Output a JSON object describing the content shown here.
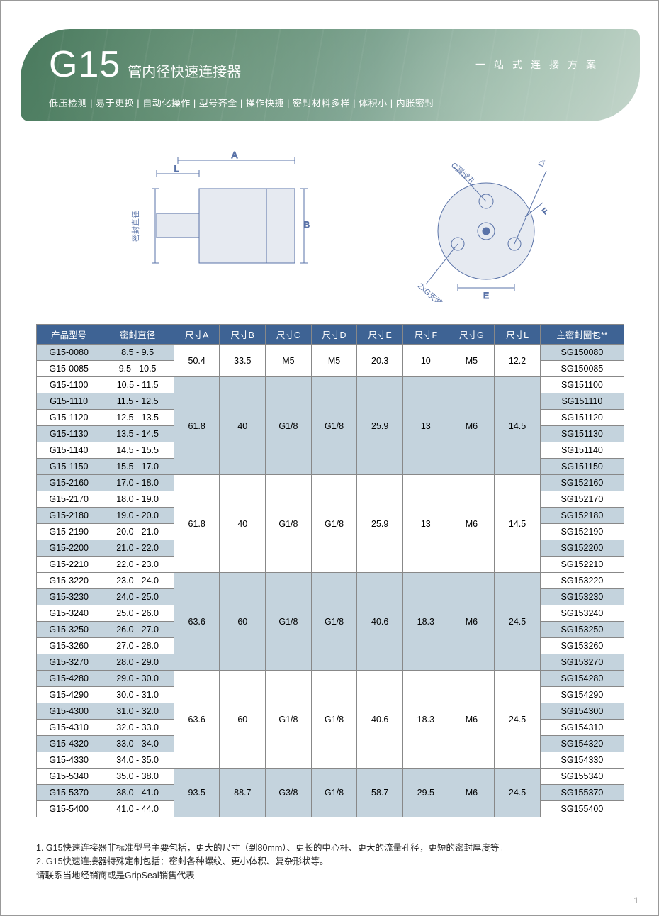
{
  "page_number": "1",
  "colors": {
    "header_gradient_from": "#4a7a5e",
    "header_gradient_to": "#c5d6cc",
    "table_header_bg": "#3e6394",
    "table_header_fg": "#ffffff",
    "shade_bg": "#c4d3dd",
    "border": "#888888",
    "text": "#222222"
  },
  "header": {
    "code": "G15",
    "subtitle": "管内径快速连接器",
    "slogan": "一站式连接方案",
    "features": "低压检测 | 易于更换 | 自动化操作 | 型号齐全 | 操作快捷 | 密封材料多样 | 体积小 | 内胀密封"
  },
  "diagram": {
    "left_labels": {
      "A": "A",
      "L": "L",
      "B": "B",
      "seal_dia": "密封直径"
    },
    "right_labels": {
      "C": "C测试孔",
      "D": "D驱动孔",
      "G": "2xG安装孔",
      "E": "E",
      "F": "F"
    }
  },
  "table": {
    "headers": [
      "产品型号",
      "密封直径",
      "尺寸A",
      "尺寸B",
      "尺寸C",
      "尺寸D",
      "尺寸E",
      "尺寸F",
      "尺寸G",
      "尺寸L",
      "主密封圈包**"
    ],
    "groups": [
      {
        "shade": false,
        "dims": [
          "50.4",
          "33.5",
          "M5",
          "M5",
          "20.3",
          "10",
          "M5",
          "12.2"
        ],
        "rows": [
          {
            "model": "G15-0080",
            "dia": "8.5 - 9.5",
            "seal": "SG150080"
          },
          {
            "model": "G15-0085",
            "dia": "9.5 - 10.5",
            "seal": "SG150085"
          }
        ]
      },
      {
        "shade": true,
        "dims": [
          "61.8",
          "40",
          "G1/8",
          "G1/8",
          "25.9",
          "13",
          "M6",
          "14.5"
        ],
        "rows": [
          {
            "model": "G15-1100",
            "dia": "10.5 - 11.5",
            "seal": "SG151100"
          },
          {
            "model": "G15-1110",
            "dia": "11.5 - 12.5",
            "seal": "SG151110"
          },
          {
            "model": "G15-1120",
            "dia": "12.5 - 13.5",
            "seal": "SG151120"
          },
          {
            "model": "G15-1130",
            "dia": "13.5 - 14.5",
            "seal": "SG151130"
          },
          {
            "model": "G15-1140",
            "dia": "14.5 - 15.5",
            "seal": "SG151140"
          },
          {
            "model": "G15-1150",
            "dia": "15.5 - 17.0",
            "seal": "SG151150"
          }
        ]
      },
      {
        "shade": false,
        "dims": [
          "61.8",
          "40",
          "G1/8",
          "G1/8",
          "25.9",
          "13",
          "M6",
          "14.5"
        ],
        "rows": [
          {
            "model": "G15-2160",
            "dia": "17.0 - 18.0",
            "seal": "SG152160"
          },
          {
            "model": "G15-2170",
            "dia": "18.0 - 19.0",
            "seal": "SG152170"
          },
          {
            "model": "G15-2180",
            "dia": "19.0 - 20.0",
            "seal": "SG152180"
          },
          {
            "model": "G15-2190",
            "dia": "20.0 - 21.0",
            "seal": "SG152190"
          },
          {
            "model": "G15-2200",
            "dia": "21.0 - 22.0",
            "seal": "SG152200"
          },
          {
            "model": "G15-2210",
            "dia": "22.0 - 23.0",
            "seal": "SG152210"
          }
        ]
      },
      {
        "shade": true,
        "dims": [
          "63.6",
          "60",
          "G1/8",
          "G1/8",
          "40.6",
          "18.3",
          "M6",
          "24.5"
        ],
        "rows": [
          {
            "model": "G15-3220",
            "dia": "23.0 - 24.0",
            "seal": "SG153220"
          },
          {
            "model": "G15-3230",
            "dia": "24.0 - 25.0",
            "seal": "SG153230"
          },
          {
            "model": "G15-3240",
            "dia": "25.0 - 26.0",
            "seal": "SG153240"
          },
          {
            "model": "G15-3250",
            "dia": "26.0 - 27.0",
            "seal": "SG153250"
          },
          {
            "model": "G15-3260",
            "dia": "27.0 - 28.0",
            "seal": "SG153260"
          },
          {
            "model": "G15-3270",
            "dia": "28.0 - 29.0",
            "seal": "SG153270"
          }
        ]
      },
      {
        "shade": false,
        "dims": [
          "63.6",
          "60",
          "G1/8",
          "G1/8",
          "40.6",
          "18.3",
          "M6",
          "24.5"
        ],
        "rows": [
          {
            "model": "G15-4280",
            "dia": "29.0 - 30.0",
            "seal": "SG154280"
          },
          {
            "model": "G15-4290",
            "dia": "30.0 - 31.0",
            "seal": "SG154290"
          },
          {
            "model": "G15-4300",
            "dia": "31.0 - 32.0",
            "seal": "SG154300"
          },
          {
            "model": "G15-4310",
            "dia": "32.0 - 33.0",
            "seal": "SG154310"
          },
          {
            "model": "G15-4320",
            "dia": "33.0 - 34.0",
            "seal": "SG154320"
          },
          {
            "model": "G15-4330",
            "dia": "34.0 - 35.0",
            "seal": "SG154330"
          }
        ]
      },
      {
        "shade": true,
        "dims": [
          "93.5",
          "88.7",
          "G3/8",
          "G1/8",
          "58.7",
          "29.5",
          "M6",
          "24.5"
        ],
        "rows": [
          {
            "model": "G15-5340",
            "dia": "35.0 - 38.0",
            "seal": "SG155340"
          },
          {
            "model": "G15-5370",
            "dia": "38.0 - 41.0",
            "seal": "SG155370"
          },
          {
            "model": "G15-5400",
            "dia": "41.0 - 44.0",
            "seal": "SG155400"
          }
        ]
      }
    ]
  },
  "notes": {
    "line1": "1. G15快速连接器非标准型号主要包括，更大的尺寸（到80mm）、更长的中心杆、更大的流量孔径，更短的密封厚度等。",
    "line2": "2. G15快速连接器特殊定制包括：密封各种螺纹、更小体积、复杂形状等。",
    "line3": "请联系当地经销商或是GripSeal销售代表"
  }
}
